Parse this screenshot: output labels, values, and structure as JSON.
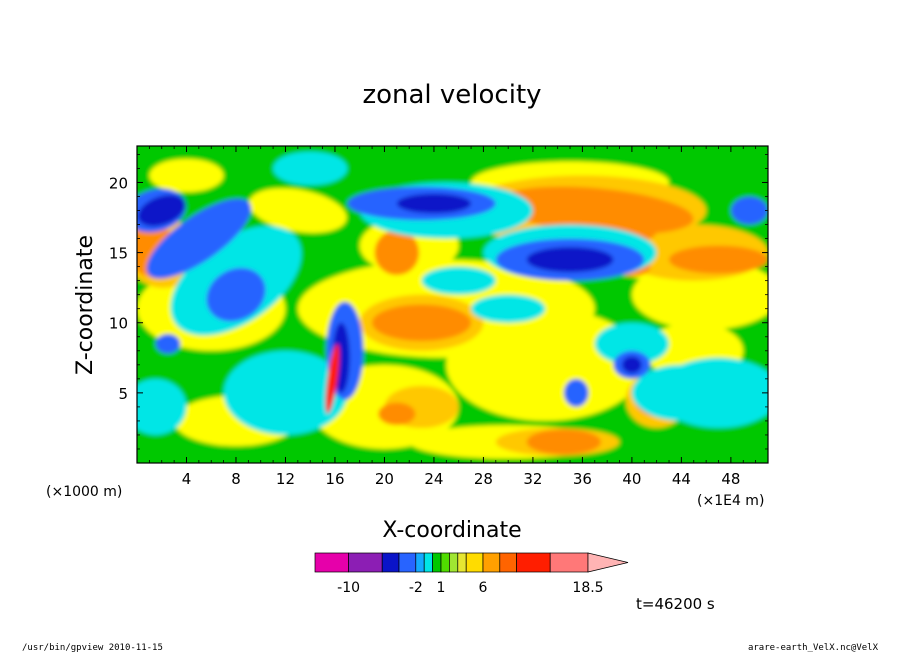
{
  "chart_data": {
    "type": "heatmap",
    "title": "zonal velocity",
    "xlabel": "X-coordinate",
    "ylabel": "Z-coordinate",
    "x_unit_left": "(×1000 m)",
    "x_unit_right": "(×1E4 m)",
    "xlim": [
      0,
      51
    ],
    "ylim": [
      0,
      22.6
    ],
    "x_ticks": [
      4,
      8,
      12,
      16,
      20,
      24,
      28,
      32,
      36,
      40,
      44,
      48
    ],
    "y_ticks": [
      5,
      10,
      15,
      20
    ],
    "contour_levels": [
      -14,
      -10,
      -6,
      -4,
      -2,
      -1,
      0,
      1,
      2,
      3,
      4,
      6,
      8,
      10,
      14,
      18.5
    ],
    "colorbar_labels": [
      "-10",
      "-2",
      "1",
      "6",
      "18.5"
    ],
    "colorbar_colors": [
      "#e600aa",
      "#8c1eb4",
      "#0a14c8",
      "#2864ff",
      "#14aaff",
      "#00e6e6",
      "#00c800",
      "#50dc00",
      "#a0e632",
      "#e6e632",
      "#ffdc00",
      "#ffa000",
      "#ff6400",
      "#ff1e00",
      "#ff7878",
      "#ffb4b4"
    ],
    "field_colors": {
      "dark_blue": "#0a14c8",
      "blue": "#2864ff",
      "cyan": "#00e6e6",
      "green": "#00c800",
      "yellow": "#ffff00",
      "gold": "#ffc800",
      "orange": "#ff8c00",
      "red": "#ff1e00"
    },
    "time_label": "t=46200 s",
    "grid": false
  },
  "footer": {
    "left": "/usr/bin/gpview   2010-11-15",
    "right": "arare-earth_VelX.nc@VelX"
  }
}
